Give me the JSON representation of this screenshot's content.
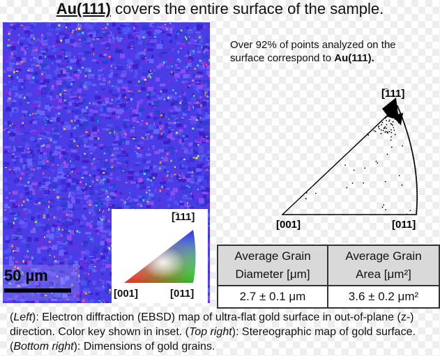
{
  "title": {
    "bold": "Au(111)",
    "rest": " covers the entire surface of the sample."
  },
  "ebsd_map": {
    "scale_bar": "50 µm",
    "inset": {
      "top": "[̅111]",
      "left": "[001]",
      "right": "[011]"
    }
  },
  "stereo": {
    "note": "Over 92% of points analyzed on the surface correspond to ",
    "note_bold": "Au(111).",
    "labels": {
      "top": "[̅111]",
      "left": "[001]",
      "right": "[011]"
    }
  },
  "table": {
    "h1_line1": "Average Grain",
    "h1_line2": "Diameter [μm]",
    "h2_line1": "Average Grain",
    "h2_line2": "Area [μm²]",
    "v1": "2.7 ± 0.1 μm",
    "v2": "3.6 ± 0.2 μm²"
  },
  "caption": {
    "p1": "(",
    "left": "Left",
    "p2": "): Electron diffraction (EBSD) map of ultra-flat gold surface in out-of-plane (z-) direction. Color key shown in inset. (",
    "topright": "Top right",
    "p3": "): Stereographic map of gold surface. (",
    "bottomright": "Bottom right",
    "p4": "): Dimensions of gold grains."
  },
  "colors": {
    "map_base": "#4a3ce6",
    "table_header": "#d9d9d9"
  }
}
